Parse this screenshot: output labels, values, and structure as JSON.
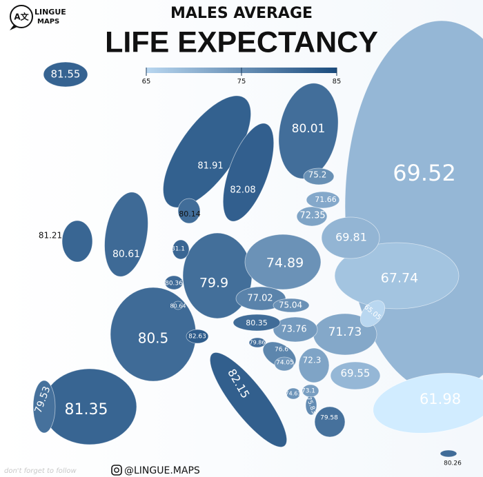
{
  "logo": {
    "icon": "A文",
    "line1": "LINGUE",
    "line2": "MAPS"
  },
  "title": {
    "line1": "MALES AVERAGE",
    "line2": "LIFE EXPECTANCY"
  },
  "legend": {
    "min": 65,
    "max": 85,
    "ticks": [
      65,
      75,
      85
    ],
    "color_low": "#b9d7f0",
    "color_high": "#1b4b7d"
  },
  "regions": [
    {
      "value": 81.55
    },
    {
      "value": 80.01
    },
    {
      "value": 69.52
    },
    {
      "value": 81.91
    },
    {
      "value": 82.08
    },
    {
      "value": 75.2
    },
    {
      "value": 71.66
    },
    {
      "value": 72.35
    },
    {
      "value": 80.14
    },
    {
      "value": 81.21
    },
    {
      "value": 80.61
    },
    {
      "value": 81.1
    },
    {
      "value": 69.81
    },
    {
      "value": 74.89
    },
    {
      "value": 80.36
    },
    {
      "value": 79.9
    },
    {
      "value": 67.74
    },
    {
      "value": 80.64
    },
    {
      "value": 77.02
    },
    {
      "value": 75.04
    },
    {
      "value": 65.05
    },
    {
      "value": 80.35
    },
    {
      "value": 73.76
    },
    {
      "value": 71.73
    },
    {
      "value": 80.5
    },
    {
      "value": 82.63
    },
    {
      "value": 79.86
    },
    {
      "value": 76.6
    },
    {
      "value": 74.05
    },
    {
      "value": 72.3
    },
    {
      "value": 69.55
    },
    {
      "value": 82.15
    },
    {
      "value": 74.61
    },
    {
      "value": 73.1
    },
    {
      "value": 75.83
    },
    {
      "value": 79.58
    },
    {
      "value": 61.98
    },
    {
      "value": 79.53
    },
    {
      "value": 81.35
    },
    {
      "value": 80.26
    }
  ],
  "footer": {
    "note": "don't forget to follow",
    "handle": "@LINGUE.MAPS"
  }
}
